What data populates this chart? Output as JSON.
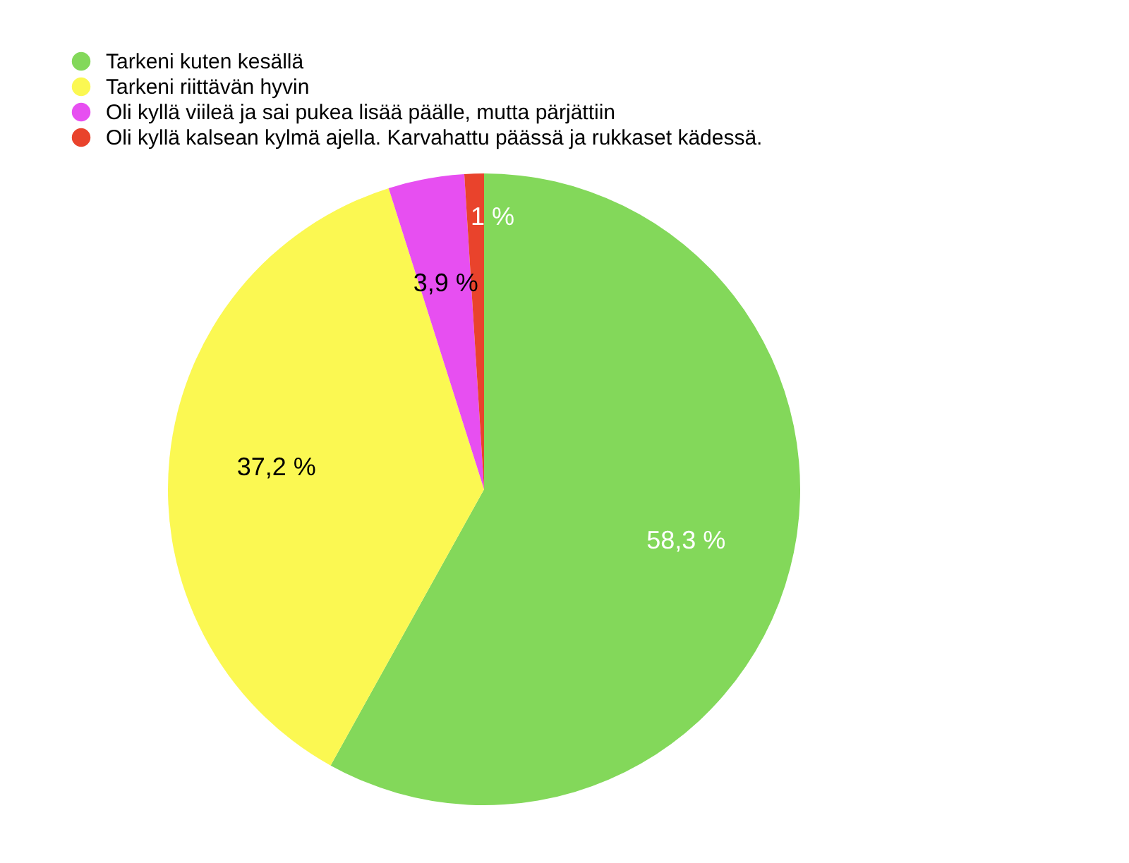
{
  "chart_data": {
    "type": "pie",
    "categories": [
      "Tarkeni kuten kesällä",
      "Tarkeni riittävän hyvin",
      "Oli kyllä viileä ja sai pukea lisää päälle, mutta pärjättiin",
      "Oli kyllä kalsean kylmä ajella. Karvahattu päässä ja rukkaset kädessä."
    ],
    "values": [
      58.3,
      37.2,
      3.9,
      1
    ],
    "colors": [
      "#83d85a",
      "#fbf852",
      "#e74ff1",
      "#e9432c"
    ],
    "value_labels": [
      "58,3 %",
      "37,2 %",
      "3,9 %",
      "1 %"
    ],
    "legend": "top left"
  }
}
